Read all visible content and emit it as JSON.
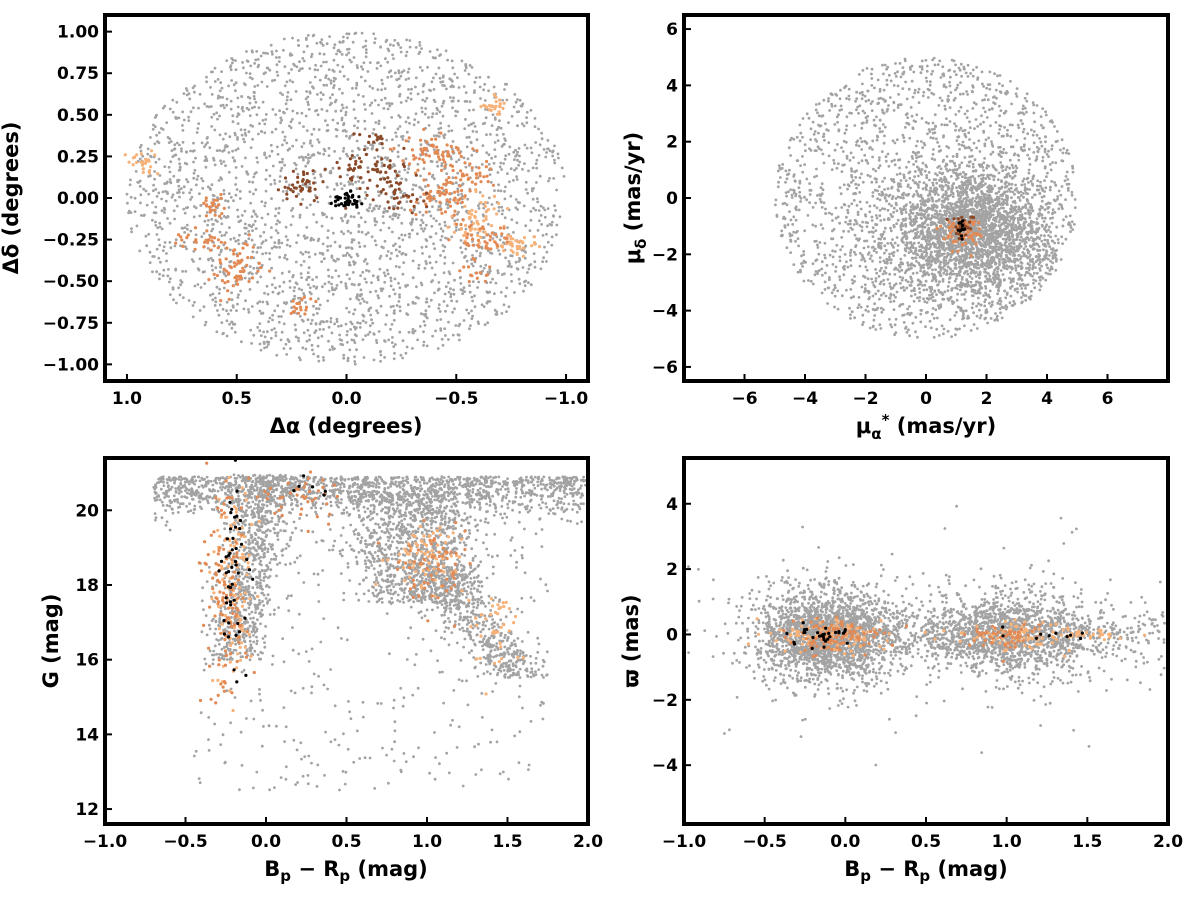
{
  "colors": {
    "field": "#a3a3a3",
    "member_light": "#f7b27a",
    "member_mid": "#e28a55",
    "member_dark": "#8a4a2a",
    "core": "#000000"
  },
  "chart_data": [
    {
      "id": "sky",
      "type": "scatter",
      "xlabel": "Δα (degrees)",
      "ylabel": "Δδ (degrees)",
      "xlim": [
        1.1,
        -1.1
      ],
      "ylim": [
        -1.1,
        1.1
      ],
      "x_inverted": true,
      "xticks": [
        1.0,
        0.5,
        0.0,
        -0.5,
        -1.0
      ],
      "xtick_labels": [
        "1.0",
        "0.5",
        "0.0",
        "−0.5",
        "−1.0"
      ],
      "yticks": [
        1.0,
        0.75,
        0.5,
        0.25,
        0.0,
        -0.25,
        -0.5,
        -0.75,
        -1.0
      ],
      "ytick_labels": [
        "1.00",
        "0.75",
        "0.50",
        "0.25",
        "0.00",
        "−0.25",
        "−0.50",
        "−0.75",
        "−1.00"
      ],
      "field": {
        "shape": "ellipse",
        "center": [
          0.0,
          0.0
        ],
        "radius": [
          1.0,
          1.0
        ],
        "count": 2600
      },
      "groups": [
        {
          "color_key": "member_light",
          "clumps": [
            [
              0.93,
              0.22,
              0.04,
              0.03,
              25
            ],
            [
              -0.68,
              0.55,
              0.03,
              0.03,
              25
            ],
            [
              -0.6,
              -0.1,
              0.06,
              0.06,
              40
            ],
            [
              -0.78,
              -0.28,
              0.06,
              0.03,
              40
            ],
            [
              -0.55,
              -0.2,
              0.04,
              0.04,
              20
            ]
          ]
        },
        {
          "color_key": "member_mid",
          "clumps": [
            [
              -0.4,
              0.28,
              0.08,
              0.05,
              60
            ],
            [
              -0.55,
              0.15,
              0.06,
              0.05,
              40
            ],
            [
              -0.42,
              0.0,
              0.07,
              0.06,
              60
            ],
            [
              -0.62,
              -0.25,
              0.06,
              0.05,
              40
            ],
            [
              0.6,
              -0.05,
              0.03,
              0.03,
              25
            ],
            [
              0.65,
              -0.25,
              0.06,
              0.03,
              30
            ],
            [
              0.5,
              -0.42,
              0.05,
              0.08,
              60
            ],
            [
              0.2,
              -0.65,
              0.03,
              0.03,
              20
            ],
            [
              -0.58,
              -0.45,
              0.04,
              0.03,
              15
            ]
          ]
        },
        {
          "color_key": "member_dark",
          "clumps": [
            [
              0.2,
              0.08,
              0.05,
              0.05,
              40
            ],
            [
              -0.1,
              0.15,
              0.08,
              0.08,
              60
            ],
            [
              -0.25,
              0.0,
              0.06,
              0.05,
              30
            ],
            [
              -0.12,
              0.35,
              0.03,
              0.03,
              15
            ]
          ]
        },
        {
          "color_key": "core",
          "clumps": [
            [
              0.0,
              -0.01,
              0.03,
              0.03,
              40
            ]
          ]
        }
      ]
    },
    {
      "id": "proper_motion",
      "type": "scatter",
      "xlabel": "μα* (mas/yr)",
      "ylabel": "μδ (mas/yr)",
      "xlim": [
        -8,
        8
      ],
      "ylim": [
        -6.5,
        6.5
      ],
      "xticks": [
        -6,
        -4,
        -2,
        0,
        2,
        4,
        6
      ],
      "xtick_labels": [
        "−6",
        "−4",
        "−2",
        "0",
        "2",
        "4",
        "6"
      ],
      "yticks": [
        6,
        4,
        2,
        0,
        -2,
        -4,
        -6
      ],
      "ytick_labels": [
        "6",
        "4",
        "2",
        "0",
        "−2",
        "−4",
        "−6"
      ],
      "field": {
        "shape": "disk",
        "center": [
          0.0,
          0.0
        ],
        "radius": [
          5.0,
          5.0
        ],
        "count": 1800,
        "core_center": [
          1.5,
          -1.2
        ],
        "core_sigma": [
          1.3,
          1.1
        ],
        "core_count": 2600
      },
      "groups": [
        {
          "color_key": "member_mid",
          "clumps": [
            [
              1.2,
              -1.2,
              0.3,
              0.25,
              80
            ]
          ]
        },
        {
          "color_key": "member_dark",
          "clumps": [
            [
              1.2,
              -1.0,
              0.2,
              0.2,
              30
            ]
          ]
        },
        {
          "color_key": "core",
          "clumps": [
            [
              1.25,
              -1.1,
              0.15,
              0.15,
              12
            ]
          ]
        }
      ]
    },
    {
      "id": "cmd",
      "type": "scatter",
      "xlabel": "Bp − Rp (mag)",
      "ylabel": "G (mag)",
      "xlim": [
        -1.0,
        2.0
      ],
      "ylim": [
        11.6,
        21.4
      ],
      "xticks": [
        -1.0,
        -0.5,
        0.0,
        0.5,
        1.0,
        1.5,
        2.0
      ],
      "xtick_labels": [
        "−1.0",
        "−0.5",
        "0.0",
        "0.5",
        "1.0",
        "1.5",
        "2.0"
      ],
      "yticks": [
        20,
        18,
        16,
        14,
        12
      ],
      "ytick_labels": [
        "20",
        "18",
        "16",
        "14",
        "12"
      ],
      "field": {
        "shape": "cmd",
        "count": 4200
      },
      "groups": [
        {
          "color_key": "member_light",
          "clumps": [
            [
              -0.2,
              18.0,
              0.07,
              1.2,
              120
            ],
            [
              1.0,
              18.8,
              0.12,
              0.4,
              80
            ],
            [
              1.4,
              16.8,
              0.1,
              0.5,
              40
            ]
          ]
        },
        {
          "color_key": "member_mid",
          "clumps": [
            [
              -0.25,
              17.5,
              0.07,
              1.5,
              120
            ],
            [
              1.05,
              18.5,
              0.12,
              0.6,
              60
            ],
            [
              0.2,
              20.3,
              0.15,
              0.3,
              40
            ]
          ]
        },
        {
          "color_key": "core",
          "clumps": [
            [
              -0.22,
              18.0,
              0.05,
              1.4,
              50
            ],
            [
              0.3,
              20.5,
              0.15,
              0.2,
              6
            ]
          ]
        }
      ]
    },
    {
      "id": "parallax",
      "type": "scatter",
      "xlabel": "Bp − Rp (mag)",
      "ylabel": "ϖ (mas)",
      "xlim": [
        -1.0,
        2.0
      ],
      "ylim": [
        -5.8,
        5.4
      ],
      "xticks": [
        -1.0,
        -0.5,
        0.0,
        0.5,
        1.0,
        1.5,
        2.0
      ],
      "xtick_labels": [
        "−1.0",
        "−0.5",
        "0.0",
        "0.5",
        "1.0",
        "1.5",
        "2.0"
      ],
      "yticks": [
        4,
        2,
        0,
        -2,
        -4
      ],
      "ytick_labels": [
        "4",
        "2",
        "0",
        "−2",
        "−4"
      ],
      "field": {
        "shape": "band",
        "count": 4200
      },
      "groups": [
        {
          "color_key": "member_light",
          "clumps": [
            [
              -0.1,
              0.0,
              0.18,
              0.25,
              100
            ],
            [
              1.05,
              0.0,
              0.15,
              0.25,
              80
            ],
            [
              1.5,
              0.0,
              0.15,
              0.08,
              30
            ]
          ]
        },
        {
          "color_key": "member_mid",
          "clumps": [
            [
              -0.05,
              -0.05,
              0.15,
              0.25,
              100
            ],
            [
              1.0,
              0.0,
              0.12,
              0.2,
              60
            ]
          ]
        },
        {
          "color_key": "core",
          "clumps": [
            [
              -0.1,
              0.0,
              0.12,
              0.15,
              30
            ],
            [
              1.2,
              0.0,
              0.2,
              0.1,
              10
            ]
          ]
        }
      ]
    }
  ]
}
